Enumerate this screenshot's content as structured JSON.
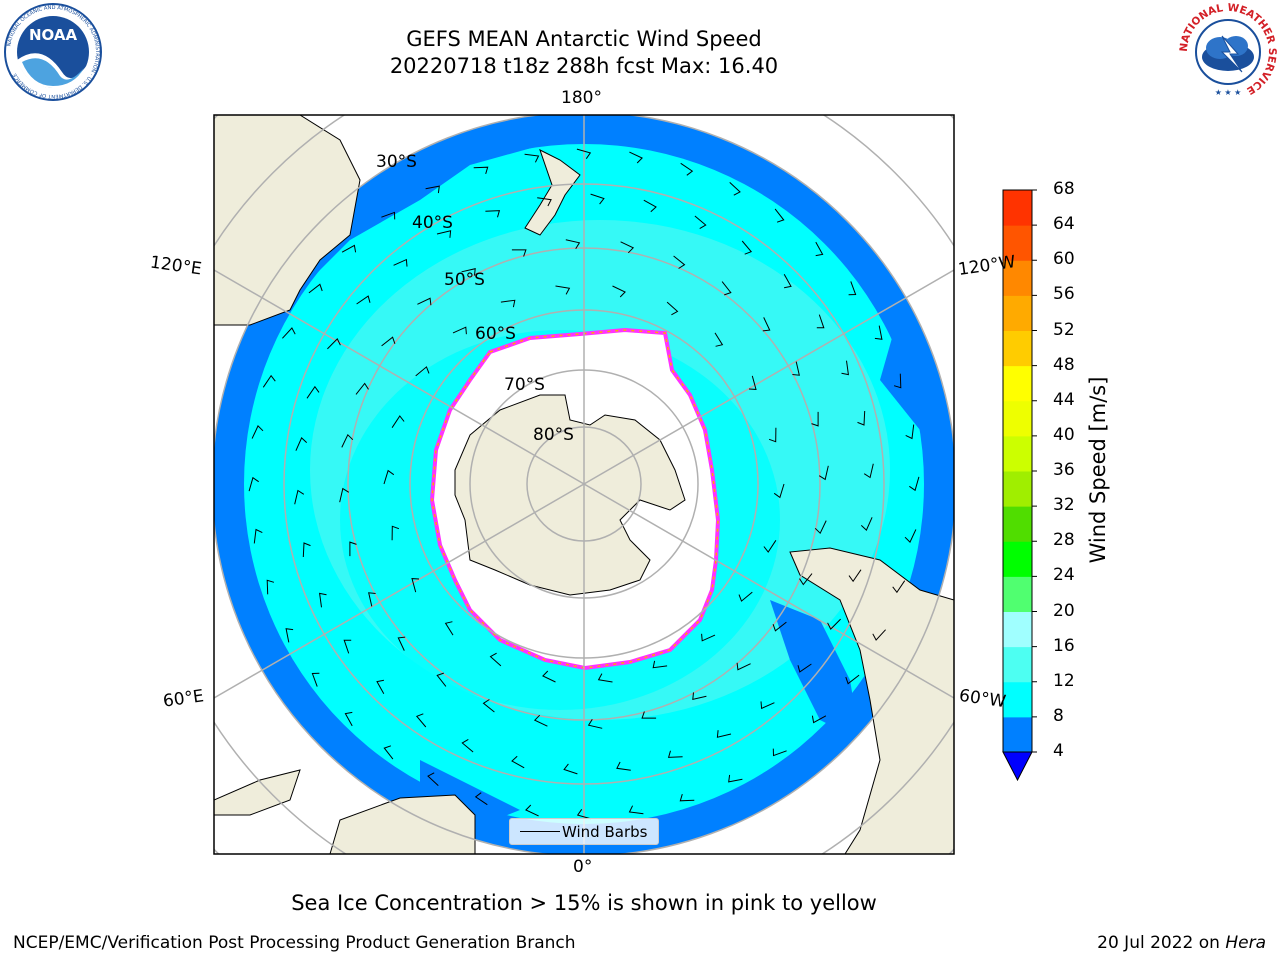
{
  "title": {
    "line1": "GEFS MEAN Antarctic Wind Speed",
    "line2": "20220718 t18z 288h fcst   Max: 16.40"
  },
  "logos": {
    "noaa": {
      "text": "NOAA",
      "ring_text": "NATIONAL OCEANIC AND ATMOSPHERIC ADMINISTRATION · U.S. DEPARTMENT OF COMMERCE",
      "color": "#1a4f9c"
    },
    "nws": {
      "ring_text": "NATIONAL WEATHER SERVICE",
      "color": "#d32027"
    }
  },
  "map": {
    "projection": "south-polar-stereographic",
    "longitude_labels": {
      "top": "180°",
      "bottom": "0°",
      "upper_left": "120°E",
      "upper_right": "120°W",
      "lower_left": "60°E",
      "lower_right": "60°W"
    },
    "latitude_labels": [
      "30°S",
      "40°S",
      "50°S",
      "60°S",
      "70°S",
      "80°S"
    ],
    "legend": {
      "entry": "Wind Barbs"
    },
    "colors": {
      "land": "#efeddb",
      "ocean_mid": "#00ffff",
      "ocean_light": "#4df7f2",
      "ocean_low": "#0080ff",
      "sea_ice_edge": "#ff33ff",
      "sea_ice_fill": "#ffffff"
    }
  },
  "colorbar": {
    "label": "Wind Speed [m/s]",
    "ticks": [
      "4",
      "8",
      "12",
      "16",
      "20",
      "24",
      "28",
      "32",
      "36",
      "40",
      "44",
      "48",
      "52",
      "56",
      "60",
      "64",
      "68"
    ],
    "colors": [
      "#0080ff",
      "#00ffff",
      "#4dfff2",
      "#a0ffff",
      "#50ff70",
      "#00ff00",
      "#50dd00",
      "#a0ee00",
      "#ccff00",
      "#eeff00",
      "#ffff00",
      "#ffcc00",
      "#ffaa00",
      "#ff8800",
      "#ff5500",
      "#ff3300",
      "#ff0000"
    ],
    "under_color": "#0000ff"
  },
  "sea_ice_note": "Sea Ice Concentration > 15% is shown in pink to yellow",
  "footer": {
    "left": "NCEP/EMC/Verification Post Processing Product Generation Branch",
    "right_date": "20 Jul 2022 on",
    "right_machine": "Hera"
  }
}
